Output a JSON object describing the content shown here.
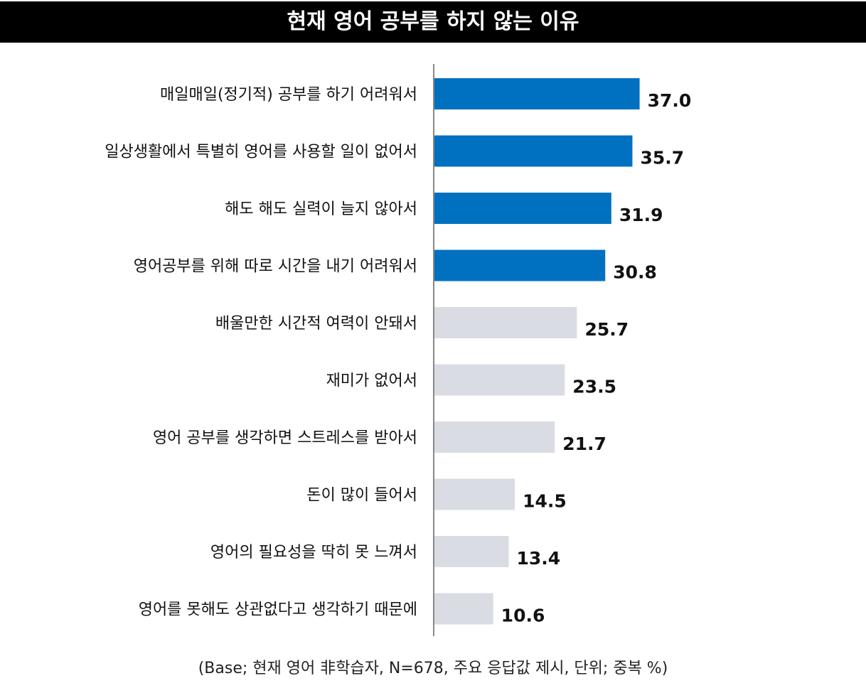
{
  "chart_data": {
    "type": "bar",
    "orientation": "horizontal",
    "title": "현재 영어 공부를 하지 않는 이유",
    "categories": [
      "매일매일(정기적) 공부를 하기 어려워서",
      "일상생활에서 특별히 영어를 사용할 일이 없어서",
      "해도 해도 실력이 늘지 않아서",
      "영어공부를 위해 따로 시간을 내기 어려워서",
      "배울만한 시간적 여력이 안돼서",
      "재미가 없어서",
      "영어 공부를 생각하면 스트레스를 받아서",
      "돈이 많이 들어서",
      "영어의 필요성을 딱히 못 느껴서",
      "영어를 못해도 상관없다고 생각하기 때문에"
    ],
    "values": [
      37.0,
      35.7,
      31.9,
      30.8,
      25.7,
      23.5,
      21.7,
      14.5,
      13.4,
      10.6
    ],
    "value_labels": [
      "37.0",
      "35.7",
      "31.9",
      "30.8",
      "25.7",
      "23.5",
      "21.7",
      "14.5",
      "13.4",
      "10.6"
    ],
    "highlight_top_n": 4,
    "colors": {
      "highlight": "#0070C0",
      "normal": "#D9DDE3",
      "axis": "#888888",
      "title_bg": "#000000",
      "title_text": "#FFFFFF"
    },
    "xlim": [
      0,
      40
    ],
    "grid": false,
    "legend": "none",
    "footnote": "(Base; 현재 영어 非학습자, N=678, 주요 응답값 제시, 단위; 중복 %)"
  }
}
